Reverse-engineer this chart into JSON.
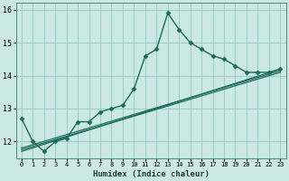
{
  "xlabel": "Humidex (Indice chaleur)",
  "bg_color": "#cce8e4",
  "grid_color": "#99cccc",
  "line_color": "#1a6b5a",
  "xlim": [
    -0.5,
    23.5
  ],
  "ylim": [
    11.5,
    16.2
  ],
  "yticks": [
    12,
    13,
    14,
    15,
    16
  ],
  "xticks": [
    0,
    1,
    2,
    3,
    4,
    5,
    6,
    7,
    8,
    9,
    10,
    11,
    12,
    13,
    14,
    15,
    16,
    17,
    18,
    19,
    20,
    21,
    22,
    23
  ],
  "series": [
    {
      "x": [
        0,
        1,
        2,
        3,
        4,
        5,
        6,
        7,
        8,
        9,
        10,
        11,
        12,
        13,
        14,
        15,
        16,
        17,
        18,
        19,
        20,
        21,
        22,
        23
      ],
      "y": [
        12.7,
        12.0,
        11.7,
        12.0,
        12.1,
        12.6,
        12.6,
        12.9,
        13.0,
        13.1,
        13.6,
        14.6,
        14.8,
        15.9,
        15.4,
        15.0,
        14.8,
        14.6,
        14.5,
        14.3,
        14.1,
        14.1,
        14.1,
        14.2
      ],
      "marker": "D",
      "markersize": 2.5,
      "linewidth": 1.0
    },
    {
      "x": [
        0,
        23
      ],
      "y": [
        11.7,
        14.2
      ],
      "marker": null,
      "markersize": 0,
      "linewidth": 0.9
    },
    {
      "x": [
        0,
        23
      ],
      "y": [
        11.75,
        14.1
      ],
      "marker": null,
      "markersize": 0,
      "linewidth": 0.9
    },
    {
      "x": [
        0,
        23
      ],
      "y": [
        11.8,
        14.15
      ],
      "marker": null,
      "markersize": 0,
      "linewidth": 0.9
    }
  ]
}
